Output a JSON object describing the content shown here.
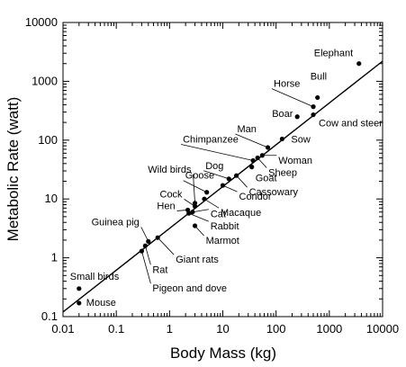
{
  "chart_data": {
    "type": "scatter",
    "xlabel": "Body Mass (kg)",
    "ylabel": "Metabolic Rate (watt)",
    "xscale": "log",
    "yscale": "log",
    "xlim": [
      0.01,
      10000
    ],
    "ylim": [
      0.1,
      10000
    ],
    "grid": false,
    "legend": "none",
    "x_ticks": [
      0.01,
      0.1,
      1,
      10,
      100,
      1000,
      10000
    ],
    "x_tick_labels": [
      "0.01",
      "0.1",
      "1",
      "10",
      "100",
      "1000",
      "10000"
    ],
    "y_ticks": [
      0.1,
      1,
      10,
      100,
      1000,
      10000
    ],
    "y_tick_labels": [
      "0.1",
      "1",
      "10",
      "100",
      "1000",
      "10000"
    ],
    "points": [
      {
        "label": "Mouse",
        "x": 0.02,
        "y": 0.17
      },
      {
        "label": "Small birds",
        "x": 0.02,
        "y": 0.3
      },
      {
        "label": "Rat",
        "x": 0.35,
        "y": 1.6
      },
      {
        "label": "Pigeon and dove",
        "x": 0.3,
        "y": 1.3
      },
      {
        "label": "Guinea pig",
        "x": 0.4,
        "y": 1.9
      },
      {
        "label": "Giant rats",
        "x": 0.6,
        "y": 2.2
      },
      {
        "label": "Marmot",
        "x": 3,
        "y": 3.5
      },
      {
        "label": "Rabbit",
        "x": 2.3,
        "y": 5.7
      },
      {
        "label": "Cat",
        "x": 2.7,
        "y": 6
      },
      {
        "label": "Hen",
        "x": 2.2,
        "y": 6.5
      },
      {
        "label": "Cock",
        "x": 3,
        "y": 7.5
      },
      {
        "label": "Wild birds",
        "x": 3,
        "y": 8.5
      },
      {
        "label": "Macaque",
        "x": 4.5,
        "y": 10
      },
      {
        "label": "Goose",
        "x": 5,
        "y": 13
      },
      {
        "label": "Condor",
        "x": 10,
        "y": 17
      },
      {
        "label": "Dog",
        "x": 13,
        "y": 22
      },
      {
        "label": "Cassowary",
        "x": 18,
        "y": 25
      },
      {
        "label": "Goat",
        "x": 35,
        "y": 35
      },
      {
        "label": "Chimpanzee",
        "x": 37,
        "y": 45
      },
      {
        "label": "Sheep",
        "x": 45,
        "y": 50
      },
      {
        "label": "Woman",
        "x": 55,
        "y": 55
      },
      {
        "label": "Man",
        "x": 70,
        "y": 75
      },
      {
        "label": "Sow",
        "x": 130,
        "y": 105
      },
      {
        "label": "Boar",
        "x": 250,
        "y": 250
      },
      {
        "label": "Cow and steer",
        "x": 500,
        "y": 270
      },
      {
        "label": "Horse",
        "x": 500,
        "y": 370
      },
      {
        "label": "Bull",
        "x": 600,
        "y": 530
      },
      {
        "label": "Elephant",
        "x": 3600,
        "y": 2000
      }
    ],
    "fit_line": {
      "x": [
        0.01,
        10000
      ],
      "y": [
        0.12,
        2200
      ]
    }
  }
}
